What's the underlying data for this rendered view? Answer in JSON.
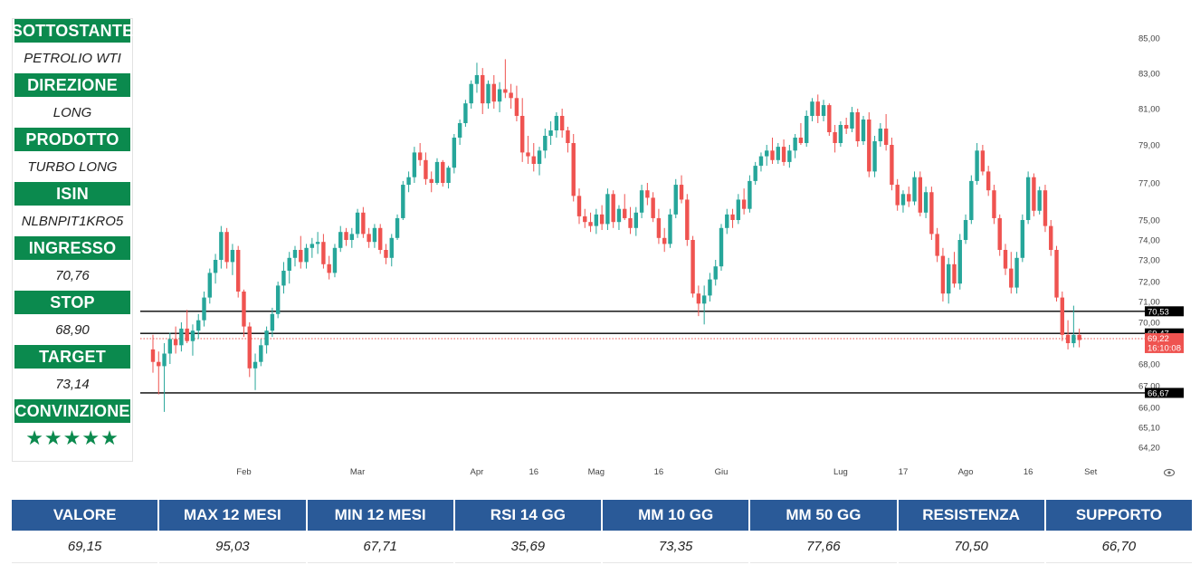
{
  "info_panel": {
    "rows": [
      {
        "label": "SOTTOSTANTE",
        "value": "PETROLIO WTI"
      },
      {
        "label": "DIREZIONE",
        "value": "LONG"
      },
      {
        "label": "PRODOTTO",
        "value": "TURBO LONG"
      },
      {
        "label": "ISIN",
        "value": "NLBNPIT1KRO5"
      },
      {
        "label": "INGRESSO",
        "value": "70,76"
      },
      {
        "label": "STOP",
        "value": "68,90"
      },
      {
        "label": "TARGET",
        "value": "73,14"
      },
      {
        "label": "CONVINZIONE",
        "value": "★★★★★"
      }
    ],
    "accent_color": "#0b8a4e"
  },
  "stats": {
    "header_color": "#2a5a98",
    "columns": [
      {
        "label": "VALORE",
        "value": "69,15"
      },
      {
        "label": "MAX 12 MESI",
        "value": "95,03"
      },
      {
        "label": "MIN 12 MESI",
        "value": "67,71"
      },
      {
        "label": "RSI 14 GG",
        "value": "35,69"
      },
      {
        "label": "MM 10 GG",
        "value": "73,35"
      },
      {
        "label": "MM 50 GG",
        "value": "77,66"
      },
      {
        "label": "RESISTENZA",
        "value": "70,50"
      },
      {
        "label": "SUPPORTO",
        "value": "66,70"
      }
    ]
  },
  "chart_data": {
    "type": "candlestick",
    "up_color": "#26a69a",
    "down_color": "#ef5350",
    "y_ticks": [
      {
        "value": 64.2,
        "label": "64,20"
      },
      {
        "value": 65.1,
        "label": "65,10"
      },
      {
        "value": 66.0,
        "label": "66,00"
      },
      {
        "value": 67.0,
        "label": "67,00"
      },
      {
        "value": 68.0,
        "label": "68,00"
      },
      {
        "value": 70.0,
        "label": "70,00"
      },
      {
        "value": 71.0,
        "label": "71,00"
      },
      {
        "value": 72.0,
        "label": "72,00"
      },
      {
        "value": 73.0,
        "label": "73,00"
      },
      {
        "value": 74.0,
        "label": "74,00"
      },
      {
        "value": 75.0,
        "label": "75,00"
      },
      {
        "value": 77.0,
        "label": "77,00"
      },
      {
        "value": 79.0,
        "label": "79,00"
      },
      {
        "value": 81.0,
        "label": "81,00"
      },
      {
        "value": 83.0,
        "label": "83,00"
      },
      {
        "value": 85.0,
        "label": "85,00"
      }
    ],
    "x_ticks": [
      {
        "index": 16,
        "label": "Feb"
      },
      {
        "index": 36,
        "label": "Mar"
      },
      {
        "index": 57,
        "label": "Apr"
      },
      {
        "index": 67,
        "label": "16"
      },
      {
        "index": 78,
        "label": "Mag"
      },
      {
        "index": 89,
        "label": "16"
      },
      {
        "index": 100,
        "label": "Giu"
      },
      {
        "index": 121,
        "label": "Lug"
      },
      {
        "index": 132,
        "label": "17"
      },
      {
        "index": 143,
        "label": "Ago"
      },
      {
        "index": 154,
        "label": "16"
      },
      {
        "index": 165,
        "label": "Set"
      }
    ],
    "levels": [
      {
        "value": 70.53,
        "label": "70,53",
        "color": "#000000",
        "style": "solid"
      },
      {
        "value": 69.47,
        "label": "69,47",
        "color": "#000000",
        "style": "solid"
      },
      {
        "value": 66.67,
        "label": "66,67",
        "color": "#000000",
        "style": "solid"
      },
      {
        "value": 69.22,
        "label": "69,22",
        "sublabel": "16:10:08",
        "color": "#ef5350",
        "style": "dotted"
      }
    ],
    "candles": [
      [
        68.7,
        69.4,
        67.6,
        68.1
      ],
      [
        68.1,
        68.6,
        66.6,
        67.9
      ],
      [
        67.9,
        69.0,
        65.8,
        68.5
      ],
      [
        68.5,
        69.5,
        68.0,
        69.2
      ],
      [
        69.2,
        69.8,
        68.5,
        68.9
      ],
      [
        68.9,
        70.0,
        68.6,
        69.7
      ],
      [
        69.7,
        70.6,
        69.0,
        69.1
      ],
      [
        69.1,
        69.9,
        68.4,
        69.6
      ],
      [
        69.6,
        70.4,
        69.2,
        70.1
      ],
      [
        70.1,
        71.5,
        69.8,
        71.2
      ],
      [
        71.2,
        72.6,
        70.9,
        72.4
      ],
      [
        72.4,
        73.3,
        71.9,
        73.0
      ],
      [
        73.0,
        74.7,
        72.6,
        74.4
      ],
      [
        74.4,
        74.6,
        72.6,
        72.9
      ],
      [
        72.9,
        73.8,
        72.3,
        73.5
      ],
      [
        73.5,
        73.7,
        71.2,
        71.5
      ],
      [
        71.5,
        71.6,
        69.3,
        69.8
      ],
      [
        69.8,
        70.0,
        67.4,
        67.8
      ],
      [
        67.8,
        68.5,
        66.8,
        68.1
      ],
      [
        68.1,
        69.2,
        67.9,
        68.9
      ],
      [
        68.9,
        69.8,
        68.5,
        69.6
      ],
      [
        69.6,
        70.7,
        69.3,
        70.4
      ],
      [
        70.4,
        72.0,
        70.2,
        71.8
      ],
      [
        71.8,
        72.9,
        71.4,
        72.5
      ],
      [
        72.5,
        73.4,
        71.9,
        73.1
      ],
      [
        73.1,
        73.7,
        72.7,
        73.5
      ],
      [
        73.5,
        74.2,
        72.6,
        72.9
      ],
      [
        72.9,
        73.8,
        72.6,
        73.6
      ],
      [
        73.6,
        74.1,
        73.1,
        73.8
      ],
      [
        73.8,
        74.4,
        73.3,
        73.9
      ],
      [
        73.9,
        74.3,
        72.6,
        72.8
      ],
      [
        72.8,
        73.2,
        72.1,
        72.4
      ],
      [
        72.4,
        73.8,
        72.2,
        73.6
      ],
      [
        73.6,
        74.7,
        73.4,
        74.4
      ],
      [
        74.4,
        74.6,
        73.7,
        74.0
      ],
      [
        74.0,
        74.6,
        73.6,
        74.3
      ],
      [
        74.3,
        75.6,
        74.1,
        75.4
      ],
      [
        75.4,
        75.7,
        74.1,
        74.3
      ],
      [
        74.3,
        74.6,
        73.6,
        73.9
      ],
      [
        73.9,
        74.8,
        73.6,
        74.6
      ],
      [
        74.6,
        74.8,
        73.3,
        73.5
      ],
      [
        73.5,
        73.8,
        72.8,
        73.1
      ],
      [
        73.1,
        74.3,
        72.7,
        74.1
      ],
      [
        74.1,
        75.3,
        74.0,
        75.1
      ],
      [
        75.1,
        77.1,
        75.0,
        76.9
      ],
      [
        76.9,
        77.6,
        76.5,
        77.3
      ],
      [
        77.3,
        78.9,
        77.0,
        78.6
      ],
      [
        78.6,
        79.1,
        77.9,
        78.2
      ],
      [
        78.2,
        78.6,
        76.9,
        77.2
      ],
      [
        77.2,
        77.6,
        76.5,
        77.0
      ],
      [
        77.0,
        78.3,
        76.9,
        78.1
      ],
      [
        78.1,
        78.2,
        76.8,
        77.0
      ],
      [
        77.0,
        77.9,
        76.7,
        77.8
      ],
      [
        77.8,
        79.6,
        77.5,
        79.4
      ],
      [
        79.4,
        80.4,
        79.0,
        80.2
      ],
      [
        80.2,
        81.5,
        80.0,
        81.3
      ],
      [
        81.3,
        82.6,
        81.0,
        82.4
      ],
      [
        82.4,
        83.6,
        81.9,
        82.9
      ],
      [
        82.9,
        83.3,
        80.7,
        81.3
      ],
      [
        81.3,
        82.6,
        81.0,
        82.4
      ],
      [
        82.4,
        82.9,
        81.0,
        81.4
      ],
      [
        81.4,
        82.5,
        80.8,
        82.1
      ],
      [
        82.1,
        83.8,
        81.6,
        81.9
      ],
      [
        81.9,
        82.4,
        81.0,
        81.6
      ],
      [
        81.6,
        82.3,
        80.3,
        80.6
      ],
      [
        80.6,
        81.6,
        78.1,
        78.6
      ],
      [
        78.6,
        79.5,
        78.0,
        78.4
      ],
      [
        78.4,
        79.1,
        77.6,
        78.0
      ],
      [
        78.0,
        78.9,
        77.4,
        78.7
      ],
      [
        78.7,
        79.9,
        78.3,
        79.5
      ],
      [
        79.5,
        80.3,
        79.0,
        79.8
      ],
      [
        79.8,
        80.8,
        79.4,
        80.6
      ],
      [
        80.6,
        81.0,
        79.4,
        79.8
      ],
      [
        79.8,
        80.0,
        78.6,
        79.1
      ],
      [
        79.1,
        79.6,
        76.0,
        76.3
      ],
      [
        76.3,
        76.7,
        74.8,
        75.2
      ],
      [
        75.2,
        75.6,
        74.6,
        74.9
      ],
      [
        74.9,
        75.4,
        74.4,
        74.7
      ],
      [
        74.7,
        75.6,
        74.3,
        75.3
      ],
      [
        75.3,
        75.8,
        74.5,
        74.8
      ],
      [
        74.8,
        76.7,
        74.5,
        76.4
      ],
      [
        76.4,
        76.6,
        74.6,
        74.9
      ],
      [
        74.9,
        75.8,
        74.5,
        75.6
      ],
      [
        75.6,
        76.4,
        75.0,
        75.1
      ],
      [
        75.1,
        75.7,
        74.3,
        74.6
      ],
      [
        74.6,
        75.7,
        74.2,
        75.4
      ],
      [
        75.4,
        76.9,
        75.1,
        76.6
      ],
      [
        76.6,
        77.0,
        75.8,
        76.2
      ],
      [
        76.2,
        76.5,
        74.9,
        75.1
      ],
      [
        75.1,
        75.6,
        73.8,
        74.1
      ],
      [
        74.1,
        74.6,
        73.4,
        73.8
      ],
      [
        73.8,
        75.6,
        73.6,
        75.3
      ],
      [
        75.3,
        77.2,
        75.1,
        76.9
      ],
      [
        76.9,
        77.4,
        75.9,
        76.1
      ],
      [
        76.1,
        76.4,
        73.7,
        74.0
      ],
      [
        74.0,
        74.2,
        71.2,
        71.4
      ],
      [
        71.4,
        71.8,
        70.3,
        70.9
      ],
      [
        70.9,
        71.8,
        69.9,
        71.3
      ],
      [
        71.3,
        72.4,
        71.0,
        72.1
      ],
      [
        72.1,
        73.0,
        71.8,
        72.7
      ],
      [
        72.7,
        74.8,
        72.5,
        74.6
      ],
      [
        74.6,
        75.6,
        74.3,
        75.3
      ],
      [
        75.3,
        75.6,
        74.6,
        75.0
      ],
      [
        75.0,
        76.4,
        74.8,
        76.1
      ],
      [
        76.1,
        76.7,
        75.3,
        75.6
      ],
      [
        75.6,
        77.4,
        75.4,
        77.1
      ],
      [
        77.1,
        78.1,
        76.9,
        77.9
      ],
      [
        77.9,
        78.6,
        77.6,
        78.4
      ],
      [
        78.4,
        79.0,
        77.9,
        78.7
      ],
      [
        78.7,
        79.4,
        78.0,
        78.2
      ],
      [
        78.2,
        79.1,
        78.0,
        78.9
      ],
      [
        78.9,
        79.3,
        77.9,
        78.1
      ],
      [
        78.1,
        79.0,
        77.8,
        78.7
      ],
      [
        78.7,
        79.6,
        78.3,
        79.4
      ],
      [
        79.4,
        80.2,
        79.0,
        79.1
      ],
      [
        79.1,
        80.9,
        78.9,
        80.6
      ],
      [
        80.6,
        81.6,
        80.3,
        81.4
      ],
      [
        81.4,
        81.8,
        80.2,
        80.6
      ],
      [
        80.6,
        81.5,
        80.3,
        81.2
      ],
      [
        81.2,
        81.3,
        79.5,
        79.7
      ],
      [
        79.7,
        80.1,
        78.6,
        79.1
      ],
      [
        79.1,
        80.3,
        78.9,
        80.1
      ],
      [
        80.1,
        80.5,
        79.6,
        79.9
      ],
      [
        79.9,
        81.1,
        79.7,
        80.8
      ],
      [
        80.8,
        81.0,
        78.9,
        79.2
      ],
      [
        79.2,
        80.6,
        79.0,
        80.4
      ],
      [
        80.4,
        80.8,
        77.3,
        77.6
      ],
      [
        77.6,
        79.5,
        77.3,
        79.2
      ],
      [
        79.2,
        80.2,
        78.9,
        79.9
      ],
      [
        79.9,
        80.7,
        78.7,
        79.0
      ],
      [
        79.0,
        79.4,
        76.6,
        76.9
      ],
      [
        76.9,
        77.2,
        75.5,
        75.8
      ],
      [
        75.8,
        76.6,
        75.4,
        76.4
      ],
      [
        76.4,
        76.8,
        75.7,
        76.0
      ],
      [
        76.0,
        77.6,
        75.8,
        77.3
      ],
      [
        77.3,
        77.6,
        75.2,
        75.4
      ],
      [
        75.4,
        76.8,
        75.1,
        76.5
      ],
      [
        76.5,
        76.8,
        74.0,
        74.3
      ],
      [
        74.3,
        74.6,
        72.9,
        73.2
      ],
      [
        73.2,
        73.6,
        71.0,
        71.4
      ],
      [
        71.4,
        73.1,
        70.9,
        72.8
      ],
      [
        72.8,
        73.4,
        71.7,
        71.9
      ],
      [
        71.9,
        74.3,
        71.6,
        74.0
      ],
      [
        74.0,
        75.3,
        73.8,
        75.0
      ],
      [
        75.0,
        77.4,
        74.8,
        77.1
      ],
      [
        77.1,
        79.1,
        76.9,
        78.7
      ],
      [
        78.7,
        79.0,
        77.4,
        77.6
      ],
      [
        77.6,
        77.9,
        76.3,
        76.6
      ],
      [
        76.6,
        76.9,
        74.8,
        75.1
      ],
      [
        75.1,
        75.3,
        73.2,
        73.5
      ],
      [
        73.5,
        73.8,
        72.3,
        72.6
      ],
      [
        72.6,
        73.4,
        71.4,
        71.7
      ],
      [
        71.7,
        73.4,
        71.4,
        73.1
      ],
      [
        73.1,
        75.3,
        72.9,
        75.0
      ],
      [
        75.0,
        77.6,
        74.8,
        77.3
      ],
      [
        77.3,
        77.5,
        75.2,
        75.5
      ],
      [
        75.5,
        76.8,
        75.3,
        76.6
      ],
      [
        76.6,
        76.9,
        74.4,
        74.7
      ],
      [
        74.7,
        75.0,
        73.2,
        73.5
      ],
      [
        73.5,
        73.7,
        71.0,
        71.2
      ],
      [
        71.2,
        71.5,
        69.1,
        69.4
      ],
      [
        69.4,
        70.1,
        68.7,
        69.0
      ],
      [
        69.0,
        70.8,
        68.8,
        69.4
      ],
      [
        69.4,
        69.7,
        68.8,
        69.15
      ]
    ]
  }
}
